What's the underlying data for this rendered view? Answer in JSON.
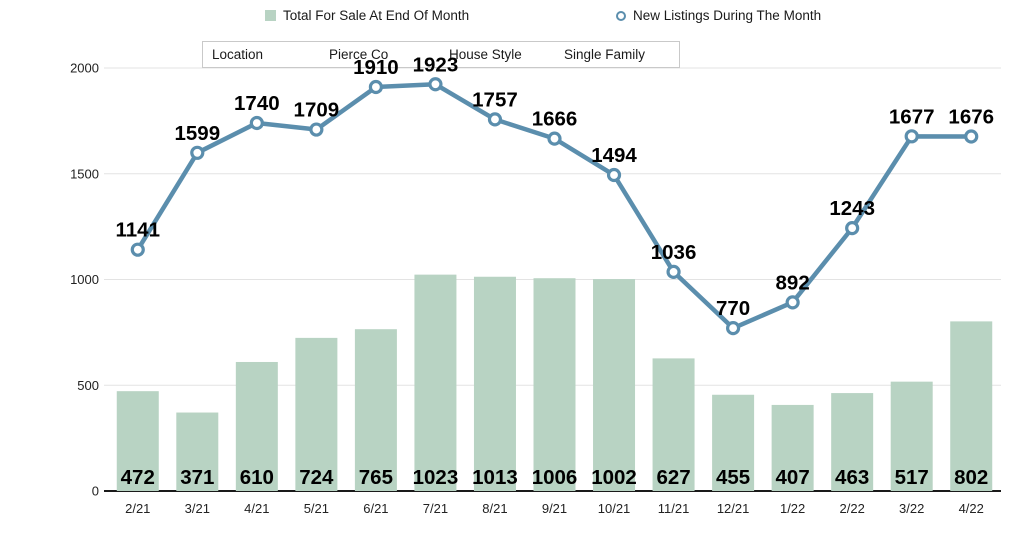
{
  "filters": {
    "location_label": "Location",
    "location_value": "Pierce Co",
    "style_label": "House Style",
    "style_value": "Single Family"
  },
  "chart_data": {
    "type": "bar",
    "title": "",
    "xlabel": "",
    "ylabel": "",
    "categories": [
      "2/21",
      "3/21",
      "4/21",
      "5/21",
      "6/21",
      "7/21",
      "8/21",
      "9/21",
      "10/21",
      "11/21",
      "12/21",
      "1/22",
      "2/22",
      "3/22",
      "4/22"
    ],
    "series": [
      {
        "name": "Total For Sale At End Of Month",
        "type": "bar",
        "color": "#b8d3c3",
        "values": [
          472,
          371,
          610,
          724,
          765,
          1023,
          1013,
          1006,
          1002,
          627,
          455,
          407,
          463,
          517,
          802
        ]
      },
      {
        "name": "New Listings During The Month",
        "type": "line",
        "color": "#5b8ead",
        "marker": "open-circle",
        "values": [
          1141,
          1599,
          1740,
          1709,
          1910,
          1923,
          1757,
          1666,
          1494,
          1036,
          770,
          892,
          1243,
          1677,
          1676
        ]
      }
    ],
    "ylim": [
      0,
      2000
    ],
    "yticks": [
      0,
      500,
      1000,
      1500,
      2000
    ],
    "grid": true,
    "legend_position": "top",
    "data_labels": true
  }
}
